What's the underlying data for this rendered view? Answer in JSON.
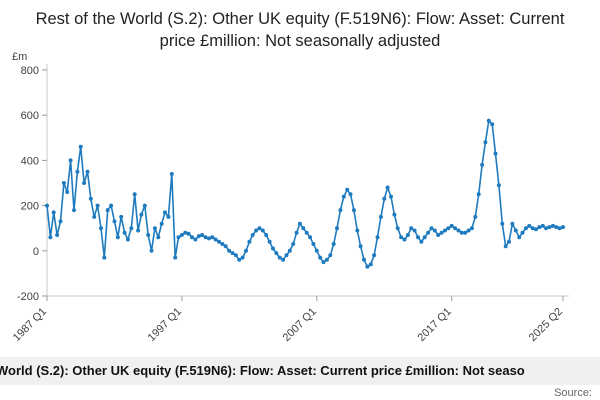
{
  "title": "Rest of the World (S.2): Other UK equity (F.519N6): Flow: Asset: Current price £million: Not seasonally adjusted",
  "footer": {
    "text": "World (S.2): Other UK equity (F.519N6): Flow: Asset: Current price £million: Not seaso",
    "source_label": "Source:"
  },
  "chart_data": {
    "type": "line",
    "title": "Rest of the World (S.2): Other UK equity (F.519N6): Flow: Asset: Current price £million: Not seasonally adjusted",
    "xlabel": "",
    "ylabel": "£m",
    "ylim": [
      -200,
      800
    ],
    "yticks": [
      800,
      600,
      400,
      200,
      0,
      -200
    ],
    "xtick_labels": [
      "1987 Q1",
      "1997 Q1",
      "2007 Q1",
      "2017 Q1",
      "2025 Q2"
    ],
    "xtick_indices": [
      0,
      40,
      80,
      120,
      153
    ],
    "start_period": "1987 Q1",
    "end_period": "2025 Q2",
    "frequency": "quarterly",
    "legend": "none",
    "grid": false,
    "line_color": "#1f7bbf",
    "marker": "circle",
    "values": [
      200,
      60,
      170,
      70,
      130,
      300,
      260,
      400,
      180,
      350,
      460,
      300,
      350,
      230,
      150,
      200,
      100,
      -30,
      180,
      200,
      130,
      60,
      150,
      80,
      50,
      100,
      250,
      90,
      160,
      200,
      70,
      0,
      100,
      60,
      120,
      170,
      150,
      340,
      -30,
      60,
      70,
      80,
      75,
      60,
      50,
      65,
      70,
      60,
      55,
      60,
      50,
      40,
      30,
      20,
      0,
      -10,
      -20,
      -40,
      -30,
      0,
      40,
      70,
      90,
      100,
      90,
      70,
      40,
      10,
      -10,
      -30,
      -40,
      -20,
      0,
      30,
      80,
      120,
      100,
      80,
      60,
      30,
      0,
      -30,
      -50,
      -40,
      -20,
      30,
      100,
      180,
      240,
      270,
      250,
      180,
      90,
      20,
      -40,
      -70,
      -60,
      -20,
      60,
      150,
      230,
      280,
      240,
      160,
      100,
      60,
      50,
      70,
      100,
      90,
      60,
      40,
      60,
      80,
      100,
      90,
      70,
      80,
      90,
      100,
      110,
      100,
      90,
      80,
      80,
      90,
      100,
      150,
      250,
      380,
      480,
      575,
      560,
      430,
      290,
      120,
      20,
      40,
      120,
      90,
      60,
      80,
      100,
      110,
      100,
      95,
      105,
      110,
      100,
      105,
      110,
      105,
      100,
      105
    ]
  }
}
